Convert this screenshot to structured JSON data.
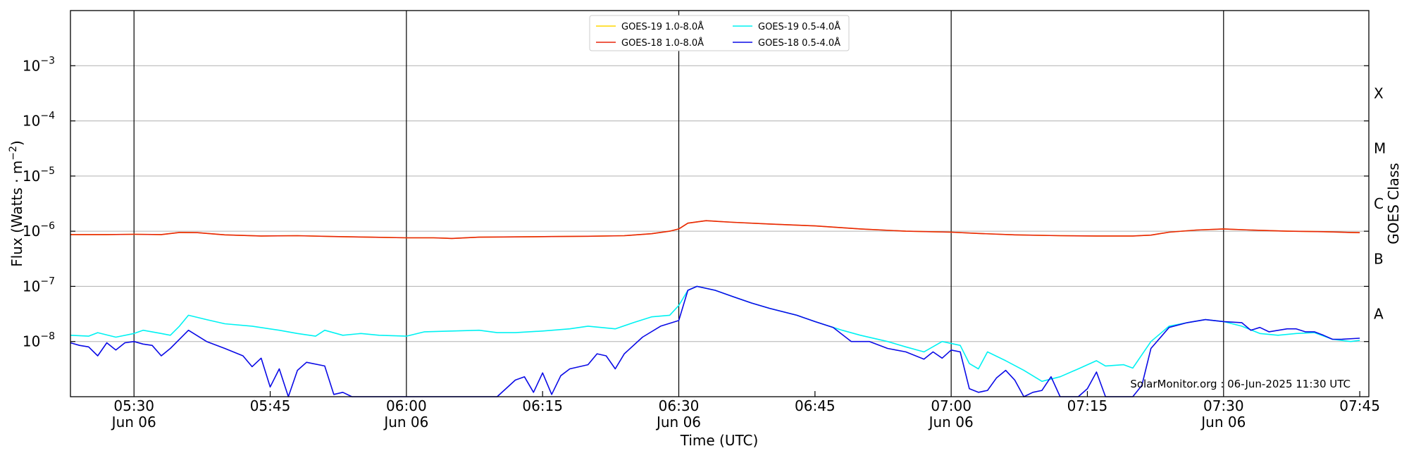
{
  "chart_data": {
    "type": "line",
    "title": "",
    "xlabel": "Time (UTC)",
    "ylabel": "Flux (Watts · m",
    "ylabel_superscript": "−2",
    "ylabel_close": ")",
    "y2label": "GOES Class",
    "yscale": "log",
    "ylim": [
      1e-09,
      0.01
    ],
    "xlim": [
      "2025-06-06 05:23:00",
      "2025-06-06 07:46:00"
    ],
    "grid": "horizontal",
    "legend_position": "top-center",
    "annotation": "SolarMonitor.org : 06-Jun-2025 11:30 UTC",
    "y_ticks": [
      {
        "value": 1e-08,
        "base": "10",
        "exp": "−8"
      },
      {
        "value": 1e-07,
        "base": "10",
        "exp": "−7"
      },
      {
        "value": 1e-06,
        "base": "10",
        "exp": "−6"
      },
      {
        "value": 1e-05,
        "base": "10",
        "exp": "−5"
      },
      {
        "value": 0.0001,
        "base": "10",
        "exp": "−4"
      },
      {
        "value": 0.001,
        "base": "10",
        "exp": "−3"
      }
    ],
    "x_ticks": [
      {
        "time": "05:30",
        "date": "Jun 06",
        "major": true
      },
      {
        "time": "05:45",
        "date": "",
        "major": false
      },
      {
        "time": "06:00",
        "date": "Jun 06",
        "major": true
      },
      {
        "time": "06:15",
        "date": "",
        "major": false
      },
      {
        "time": "06:30",
        "date": "Jun 06",
        "major": true
      },
      {
        "time": "06:45",
        "date": "",
        "major": false
      },
      {
        "time": "07:00",
        "date": "Jun 06",
        "major": true
      },
      {
        "time": "07:15",
        "date": "",
        "major": false
      },
      {
        "time": "07:30",
        "date": "Jun 06",
        "major": true
      },
      {
        "time": "07:45",
        "date": "",
        "major": false
      }
    ],
    "goes_classes": [
      {
        "label": "A",
        "value": 3.16e-08
      },
      {
        "label": "B",
        "value": 3.16e-07
      },
      {
        "label": "C",
        "value": 3.16e-06
      },
      {
        "label": "M",
        "value": 3.16e-05
      },
      {
        "label": "X",
        "value": 0.000316
      }
    ],
    "series": [
      {
        "name": "GOES-19 1.0-8.0Å",
        "color": "#ffd700",
        "points": [
          [
            "05:23",
            8.7e-07
          ],
          [
            "05:27",
            8.7e-07
          ],
          [
            "05:30",
            8.8e-07
          ],
          [
            "05:33",
            8.7e-07
          ],
          [
            "05:35",
            9.5e-07
          ],
          [
            "05:37",
            9.4e-07
          ],
          [
            "05:40",
            8.6e-07
          ],
          [
            "05:44",
            8.2e-07
          ],
          [
            "05:48",
            8.3e-07
          ],
          [
            "05:52",
            8e-07
          ],
          [
            "05:56",
            7.8e-07
          ],
          [
            "06:00",
            7.6e-07
          ],
          [
            "06:03",
            7.6e-07
          ],
          [
            "06:05",
            7.4e-07
          ],
          [
            "06:08",
            7.8e-07
          ],
          [
            "06:12",
            7.9e-07
          ],
          [
            "06:16",
            8e-07
          ],
          [
            "06:20",
            8.1e-07
          ],
          [
            "06:24",
            8.3e-07
          ],
          [
            "06:27",
            9e-07
          ],
          [
            "06:29",
            1e-06
          ],
          [
            "06:30",
            1.1e-06
          ],
          [
            "06:31",
            1.4e-06
          ],
          [
            "06:33",
            1.55e-06
          ],
          [
            "06:36",
            1.45e-06
          ],
          [
            "06:40",
            1.35e-06
          ],
          [
            "06:45",
            1.25e-06
          ],
          [
            "06:50",
            1.1e-06
          ],
          [
            "06:55",
            1e-06
          ],
          [
            "07:00",
            9.6e-07
          ],
          [
            "07:03",
            9.1e-07
          ],
          [
            "07:07",
            8.6e-07
          ],
          [
            "07:12",
            8.3e-07
          ],
          [
            "07:16",
            8.2e-07
          ],
          [
            "07:20",
            8.2e-07
          ],
          [
            "07:22",
            8.5e-07
          ],
          [
            "07:24",
            9.6e-07
          ],
          [
            "07:27",
            1.05e-06
          ],
          [
            "07:30",
            1.1e-06
          ],
          [
            "07:33",
            1.05e-06
          ],
          [
            "07:37",
            1e-06
          ],
          [
            "07:41",
            9.8e-07
          ],
          [
            "07:44",
            9.5e-07
          ],
          [
            "07:45",
            9.4e-07
          ]
        ]
      },
      {
        "name": "GOES-18 1.0-8.0Å",
        "color": "#e8250c",
        "points": [
          [
            "05:23",
            8.7e-07
          ],
          [
            "05:27",
            8.7e-07
          ],
          [
            "05:30",
            8.8e-07
          ],
          [
            "05:33",
            8.7e-07
          ],
          [
            "05:35",
            9.5e-07
          ],
          [
            "05:37",
            9.4e-07
          ],
          [
            "05:40",
            8.6e-07
          ],
          [
            "05:44",
            8.2e-07
          ],
          [
            "05:48",
            8.3e-07
          ],
          [
            "05:52",
            8e-07
          ],
          [
            "05:56",
            7.8e-07
          ],
          [
            "06:00",
            7.6e-07
          ],
          [
            "06:03",
            7.6e-07
          ],
          [
            "06:05",
            7.4e-07
          ],
          [
            "06:08",
            7.8e-07
          ],
          [
            "06:12",
            7.9e-07
          ],
          [
            "06:16",
            8e-07
          ],
          [
            "06:20",
            8.1e-07
          ],
          [
            "06:24",
            8.3e-07
          ],
          [
            "06:27",
            9e-07
          ],
          [
            "06:29",
            1e-06
          ],
          [
            "06:30",
            1.1e-06
          ],
          [
            "06:31",
            1.4e-06
          ],
          [
            "06:33",
            1.55e-06
          ],
          [
            "06:36",
            1.45e-06
          ],
          [
            "06:40",
            1.35e-06
          ],
          [
            "06:45",
            1.25e-06
          ],
          [
            "06:50",
            1.1e-06
          ],
          [
            "06:55",
            1e-06
          ],
          [
            "07:00",
            9.6e-07
          ],
          [
            "07:03",
            9.1e-07
          ],
          [
            "07:07",
            8.6e-07
          ],
          [
            "07:12",
            8.3e-07
          ],
          [
            "07:16",
            8.2e-07
          ],
          [
            "07:20",
            8.2e-07
          ],
          [
            "07:22",
            8.5e-07
          ],
          [
            "07:24",
            9.6e-07
          ],
          [
            "07:27",
            1.05e-06
          ],
          [
            "07:30",
            1.1e-06
          ],
          [
            "07:33",
            1.05e-06
          ],
          [
            "07:37",
            1e-06
          ],
          [
            "07:41",
            9.8e-07
          ],
          [
            "07:44",
            9.5e-07
          ],
          [
            "07:45",
            9.4e-07
          ]
        ]
      },
      {
        "name": "GOES-19 0.5-4.0Å",
        "color": "#00f2f2",
        "points": [
          [
            "05:23",
            1.3e-08
          ],
          [
            "05:25",
            1.25e-08
          ],
          [
            "05:26",
            1.45e-08
          ],
          [
            "05:28",
            1.2e-08
          ],
          [
            "05:30",
            1.4e-08
          ],
          [
            "05:31",
            1.6e-08
          ],
          [
            "05:33",
            1.4e-08
          ],
          [
            "05:34",
            1.3e-08
          ],
          [
            "05:35",
            1.9e-08
          ],
          [
            "05:36",
            3e-08
          ],
          [
            "05:38",
            2.5e-08
          ],
          [
            "05:40",
            2.1e-08
          ],
          [
            "05:43",
            1.9e-08
          ],
          [
            "05:46",
            1.6e-08
          ],
          [
            "05:48",
            1.4e-08
          ],
          [
            "05:50",
            1.25e-08
          ],
          [
            "05:51",
            1.6e-08
          ],
          [
            "05:53",
            1.3e-08
          ],
          [
            "05:55",
            1.4e-08
          ],
          [
            "05:57",
            1.3e-08
          ],
          [
            "06:00",
            1.25e-08
          ],
          [
            "06:02",
            1.5e-08
          ],
          [
            "06:05",
            1.55e-08
          ],
          [
            "06:08",
            1.6e-08
          ],
          [
            "06:10",
            1.45e-08
          ],
          [
            "06:12",
            1.45e-08
          ],
          [
            "06:15",
            1.55e-08
          ],
          [
            "06:18",
            1.7e-08
          ],
          [
            "06:20",
            1.9e-08
          ],
          [
            "06:23",
            1.7e-08
          ],
          [
            "06:25",
            2.2e-08
          ],
          [
            "06:27",
            2.8e-08
          ],
          [
            "06:29",
            3e-08
          ],
          [
            "06:30",
            4.5e-08
          ],
          [
            "06:31",
            8.5e-08
          ],
          [
            "06:32",
            1e-07
          ],
          [
            "06:34",
            8.5e-08
          ],
          [
            "06:36",
            6.5e-08
          ],
          [
            "06:38",
            5e-08
          ],
          [
            "06:40",
            4e-08
          ],
          [
            "06:43",
            3e-08
          ],
          [
            "06:45",
            2.3e-08
          ],
          [
            "06:48",
            1.6e-08
          ],
          [
            "06:50",
            1.3e-08
          ],
          [
            "06:53",
            1e-08
          ],
          [
            "06:55",
            8e-09
          ],
          [
            "06:57",
            6.5e-09
          ],
          [
            "06:59",
            1e-08
          ],
          [
            "07:01",
            8.5e-09
          ],
          [
            "07:02",
            4e-09
          ],
          [
            "07:03",
            3.2e-09
          ],
          [
            "07:04",
            6.5e-09
          ],
          [
            "07:06",
            4.5e-09
          ],
          [
            "07:08",
            3e-09
          ],
          [
            "07:10",
            1.9e-09
          ],
          [
            "07:12",
            2.3e-09
          ],
          [
            "07:14",
            3.2e-09
          ],
          [
            "07:16",
            4.5e-09
          ],
          [
            "07:17",
            3.6e-09
          ],
          [
            "07:19",
            3.8e-09
          ],
          [
            "07:20",
            3.3e-09
          ],
          [
            "07:22",
            1e-08
          ],
          [
            "07:24",
            1.9e-08
          ],
          [
            "07:26",
            2.2e-08
          ],
          [
            "07:28",
            2.5e-08
          ],
          [
            "07:30",
            2.3e-08
          ],
          [
            "07:32",
            1.9e-08
          ],
          [
            "07:34",
            1.4e-08
          ],
          [
            "07:36",
            1.3e-08
          ],
          [
            "07:38",
            1.4e-08
          ],
          [
            "07:40",
            1.45e-08
          ],
          [
            "07:42",
            1.1e-08
          ],
          [
            "07:44",
            1e-08
          ],
          [
            "07:45",
            1.05e-08
          ]
        ]
      },
      {
        "name": "GOES-18 0.5-4.0Å",
        "color": "#0a0ae6",
        "points": [
          [
            "05:23",
            9.5e-09
          ],
          [
            "05:24",
            8.5e-09
          ],
          [
            "05:25",
            8e-09
          ],
          [
            "05:26",
            5.5e-09
          ],
          [
            "05:27",
            9.5e-09
          ],
          [
            "05:28",
            7e-09
          ],
          [
            "05:29",
            9.5e-09
          ],
          [
            "05:30",
            1e-08
          ],
          [
            "05:31",
            9e-09
          ],
          [
            "05:32",
            8.5e-09
          ],
          [
            "05:33",
            5.5e-09
          ],
          [
            "05:34",
            7.5e-09
          ],
          [
            "05:36",
            1.6e-08
          ],
          [
            "05:38",
            1e-08
          ],
          [
            "05:40",
            7.5e-09
          ],
          [
            "05:42",
            5.5e-09
          ],
          [
            "05:43",
            3.5e-09
          ],
          [
            "05:44",
            5e-09
          ],
          [
            "05:45",
            1.5e-09
          ],
          [
            "05:46",
            3.2e-09
          ],
          [
            "05:47",
            1e-09
          ],
          [
            "05:48",
            3e-09
          ],
          [
            "05:49",
            4.2e-09
          ],
          [
            "05:51",
            3.6e-09
          ],
          [
            "05:52",
            1.1e-09
          ],
          [
            "05:53",
            1.2e-09
          ],
          [
            "05:54",
            1e-09
          ],
          [
            "06:10",
            1e-09
          ],
          [
            "06:12",
            2e-09
          ],
          [
            "06:13",
            2.3e-09
          ],
          [
            "06:14",
            1.2e-09
          ],
          [
            "06:15",
            2.7e-09
          ],
          [
            "06:16",
            1.1e-09
          ],
          [
            "06:17",
            2.4e-09
          ],
          [
            "06:18",
            3.2e-09
          ],
          [
            "06:20",
            3.8e-09
          ],
          [
            "06:21",
            6e-09
          ],
          [
            "06:22",
            5.5e-09
          ],
          [
            "06:23",
            3.2e-09
          ],
          [
            "06:24",
            6e-09
          ],
          [
            "06:26",
            1.2e-08
          ],
          [
            "06:28",
            1.9e-08
          ],
          [
            "06:30",
            2.4e-08
          ],
          [
            "06:31",
            8.5e-08
          ],
          [
            "06:32",
            1e-07
          ],
          [
            "06:34",
            8.5e-08
          ],
          [
            "06:36",
            6.5e-08
          ],
          [
            "06:38",
            5e-08
          ],
          [
            "06:40",
            4e-08
          ],
          [
            "06:43",
            3e-08
          ],
          [
            "06:45",
            2.3e-08
          ],
          [
            "06:47",
            1.8e-08
          ],
          [
            "06:49",
            1e-08
          ],
          [
            "06:51",
            1e-08
          ],
          [
            "06:53",
            7.5e-09
          ],
          [
            "06:55",
            6.5e-09
          ],
          [
            "06:57",
            4.8e-09
          ],
          [
            "06:58",
            6.5e-09
          ],
          [
            "06:59",
            5e-09
          ],
          [
            "07:00",
            7e-09
          ],
          [
            "07:01",
            6.5e-09
          ],
          [
            "07:02",
            1.4e-09
          ],
          [
            "07:03",
            1.2e-09
          ],
          [
            "07:04",
            1.3e-09
          ],
          [
            "07:05",
            2.2e-09
          ],
          [
            "07:06",
            3e-09
          ],
          [
            "07:07",
            2e-09
          ],
          [
            "07:08",
            1e-09
          ],
          [
            "07:09",
            1.2e-09
          ],
          [
            "07:10",
            1.3e-09
          ],
          [
            "07:11",
            2.3e-09
          ],
          [
            "07:12",
            1e-09
          ],
          [
            "07:14",
            1e-09
          ],
          [
            "07:15",
            1.4e-09
          ],
          [
            "07:16",
            2.8e-09
          ],
          [
            "07:17",
            1e-09
          ],
          [
            "07:20",
            1e-09
          ],
          [
            "07:21",
            1.6e-09
          ],
          [
            "07:22",
            7.5e-09
          ],
          [
            "07:24",
            1.8e-08
          ],
          [
            "07:26",
            2.2e-08
          ],
          [
            "07:28",
            2.5e-08
          ],
          [
            "07:30",
            2.3e-08
          ],
          [
            "07:32",
            2.2e-08
          ],
          [
            "07:33",
            1.6e-08
          ],
          [
            "07:34",
            1.8e-08
          ],
          [
            "07:35",
            1.5e-08
          ],
          [
            "07:37",
            1.7e-08
          ],
          [
            "07:38",
            1.7e-08
          ],
          [
            "07:39",
            1.5e-08
          ],
          [
            "07:40",
            1.5e-08
          ],
          [
            "07:41",
            1.3e-08
          ],
          [
            "07:42",
            1.1e-08
          ],
          [
            "07:43",
            1.1e-08
          ],
          [
            "07:45",
            1.15e-08
          ]
        ]
      }
    ]
  }
}
